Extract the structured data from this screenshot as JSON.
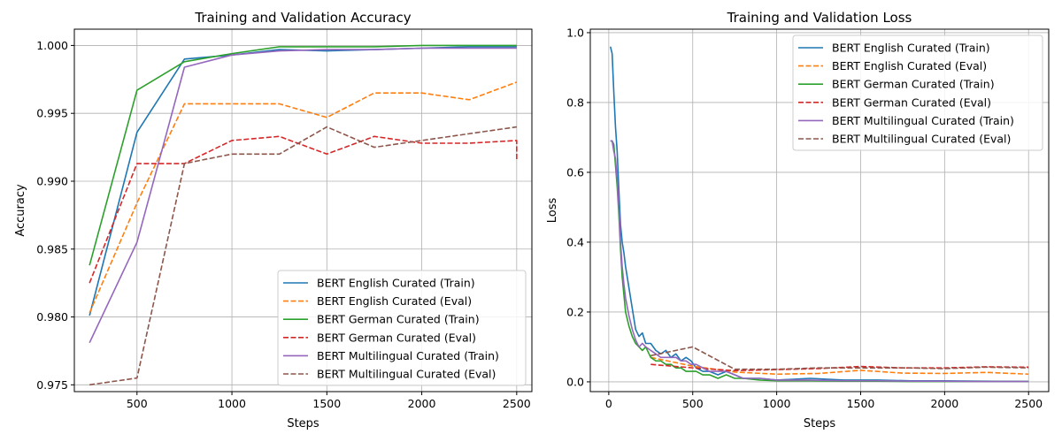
{
  "chart_data": [
    {
      "type": "line",
      "title": "Training and Validation Accuracy",
      "xlabel": "Steps",
      "ylabel": "Accuracy",
      "xlim": [
        170,
        2580
      ],
      "ylim": [
        0.9745,
        1.0012
      ],
      "xticks": [
        500,
        1000,
        1500,
        2000,
        2500
      ],
      "yticks": [
        0.975,
        0.98,
        0.985,
        0.99,
        0.995,
        1.0
      ],
      "ytick_labels": [
        "0.975",
        "0.980",
        "0.985",
        "0.990",
        "0.995",
        "1.000"
      ],
      "grid": true,
      "legend_position": "lower-right",
      "series": [
        {
          "name": "BERT English Curated (Train)",
          "color": "#1f77b4",
          "dash": "solid",
          "x": [
            250,
            500,
            750,
            1000,
            1250,
            1500,
            1750,
            2000,
            2250,
            2500
          ],
          "y": [
            0.9801,
            0.9936,
            0.999,
            0.9993,
            0.9997,
            0.9996,
            0.9997,
            0.9998,
            0.9999,
            0.9999
          ]
        },
        {
          "name": "BERT English Curated (Eval)",
          "color": "#ff7f0e",
          "dash": "dashed",
          "x": [
            250,
            500,
            750,
            1000,
            1250,
            1500,
            1750,
            2000,
            2250,
            2500
          ],
          "y": [
            0.9803,
            0.9884,
            0.9957,
            0.9957,
            0.9957,
            0.9947,
            0.9965,
            0.9965,
            0.996,
            0.9973
          ]
        },
        {
          "name": "BERT German Curated (Train)",
          "color": "#2ca02c",
          "dash": "solid",
          "x": [
            250,
            500,
            750,
            1000,
            1250,
            1500,
            1750,
            2000,
            2250,
            2500
          ],
          "y": [
            0.9838,
            0.9967,
            0.9988,
            0.9994,
            0.9999,
            0.9999,
            0.9999,
            1.0,
            1.0,
            1.0
          ]
        },
        {
          "name": "BERT German Curated (Eval)",
          "color": "#d62728",
          "dash": "dashed",
          "x": [
            250,
            500,
            750,
            1000,
            1250,
            1500,
            1750,
            2000,
            2250,
            2500,
            2500
          ],
          "y": [
            0.9825,
            0.9913,
            0.9913,
            0.993,
            0.9933,
            0.992,
            0.9933,
            0.9928,
            0.9928,
            0.993,
            0.9915
          ]
        },
        {
          "name": "BERT Multilingual Curated (Train)",
          "color": "#9467bd",
          "dash": "solid",
          "x": [
            250,
            500,
            750,
            1000,
            1250,
            1500,
            1750,
            2000,
            2250,
            2500
          ],
          "y": [
            0.9781,
            0.9855,
            0.9984,
            0.9993,
            0.9996,
            0.9997,
            0.9997,
            0.9998,
            0.9998,
            0.9998
          ]
        },
        {
          "name": "BERT Multilingual Curated (Eval)",
          "color": "#8c564b",
          "dash": "dashed",
          "x": [
            250,
            500,
            750,
            1000,
            1250,
            1500,
            1750,
            2000,
            2250,
            2500
          ],
          "y": [
            0.975,
            0.9755,
            0.9913,
            0.992,
            0.992,
            0.994,
            0.9925,
            0.993,
            0.9935,
            0.994
          ]
        }
      ]
    },
    {
      "type": "line",
      "title": "Training and Validation Loss",
      "xlabel": "Steps",
      "ylabel": "Loss",
      "xlim": [
        -110,
        2620
      ],
      "ylim": [
        -0.028,
        1.01
      ],
      "xticks": [
        0,
        500,
        1000,
        1500,
        2000,
        2500
      ],
      "yticks": [
        0.0,
        0.2,
        0.4,
        0.6,
        0.8,
        1.0
      ],
      "ytick_labels": [
        "0.0",
        "0.2",
        "0.4",
        "0.6",
        "0.8",
        "1.0"
      ],
      "grid": true,
      "legend_position": "upper-right",
      "series": [
        {
          "name": "BERT English Curated (Train)",
          "color": "#1f77b4",
          "dash": "solid",
          "x": [
            10,
            20,
            30,
            40,
            50,
            60,
            70,
            80,
            90,
            100,
            120,
            140,
            160,
            180,
            200,
            220,
            250,
            280,
            310,
            340,
            370,
            400,
            430,
            460,
            490,
            520,
            560,
            600,
            650,
            700,
            750,
            800,
            900,
            1000,
            1200,
            1400,
            1600,
            1800,
            2000,
            2200,
            2500
          ],
          "y": [
            0.96,
            0.94,
            0.83,
            0.73,
            0.66,
            0.55,
            0.45,
            0.4,
            0.37,
            0.33,
            0.27,
            0.21,
            0.15,
            0.13,
            0.14,
            0.11,
            0.11,
            0.09,
            0.08,
            0.09,
            0.07,
            0.08,
            0.06,
            0.07,
            0.06,
            0.04,
            0.03,
            0.03,
            0.02,
            0.03,
            0.02,
            0.01,
            0.01,
            0.005,
            0.01,
            0.005,
            0.005,
            0.003,
            0.003,
            0.002,
            0.001
          ]
        },
        {
          "name": "BERT English Curated (Eval)",
          "color": "#ff7f0e",
          "dash": "dashed",
          "x": [
            250,
            500,
            750,
            1000,
            1250,
            1500,
            1750,
            2000,
            2250,
            2500
          ],
          "y": [
            0.07,
            0.045,
            0.028,
            0.022,
            0.024,
            0.033,
            0.025,
            0.024,
            0.027,
            0.022
          ]
        },
        {
          "name": "BERT German Curated (Train)",
          "color": "#2ca02c",
          "dash": "solid",
          "x": [
            10,
            20,
            30,
            40,
            50,
            60,
            70,
            80,
            90,
            100,
            120,
            140,
            160,
            180,
            200,
            220,
            250,
            280,
            310,
            340,
            370,
            400,
            430,
            460,
            490,
            520,
            560,
            600,
            650,
            700,
            750,
            800,
            900,
            1000,
            1200,
            1400,
            1600,
            1800,
            2000,
            2200,
            2500
          ],
          "y": [
            0.69,
            0.69,
            0.68,
            0.62,
            0.56,
            0.48,
            0.38,
            0.3,
            0.25,
            0.2,
            0.16,
            0.13,
            0.11,
            0.1,
            0.09,
            0.1,
            0.07,
            0.06,
            0.06,
            0.05,
            0.05,
            0.04,
            0.04,
            0.03,
            0.03,
            0.03,
            0.02,
            0.02,
            0.01,
            0.02,
            0.01,
            0.01,
            0.005,
            0.003,
            0.003,
            0.002,
            0.002,
            0.001,
            0.001,
            0.001,
            0.001
          ]
        },
        {
          "name": "BERT German Curated (Eval)",
          "color": "#d62728",
          "dash": "dashed",
          "x": [
            250,
            500,
            750,
            1000,
            1250,
            1500,
            1750,
            2000,
            2250,
            2500
          ],
          "y": [
            0.05,
            0.04,
            0.032,
            0.035,
            0.038,
            0.044,
            0.04,
            0.04,
            0.043,
            0.042
          ]
        },
        {
          "name": "BERT Multilingual Curated (Train)",
          "color": "#9467bd",
          "dash": "solid",
          "x": [
            10,
            20,
            30,
            40,
            50,
            60,
            70,
            80,
            90,
            100,
            120,
            140,
            160,
            180,
            200,
            220,
            250,
            280,
            310,
            340,
            370,
            400,
            430,
            460,
            490,
            520,
            560,
            600,
            650,
            700,
            750,
            800,
            900,
            1000,
            1200,
            1400,
            1600,
            1800,
            2000,
            2200,
            2500
          ],
          "y": [
            0.69,
            0.69,
            0.66,
            0.64,
            0.58,
            0.5,
            0.4,
            0.33,
            0.28,
            0.24,
            0.19,
            0.15,
            0.12,
            0.1,
            0.11,
            0.1,
            0.09,
            0.08,
            0.07,
            0.07,
            0.07,
            0.07,
            0.06,
            0.06,
            0.05,
            0.05,
            0.04,
            0.03,
            0.03,
            0.03,
            0.02,
            0.01,
            0.01,
            0.005,
            0.005,
            0.003,
            0.003,
            0.002,
            0.002,
            0.001,
            0.001
          ]
        },
        {
          "name": "BERT Multilingual Curated (Eval)",
          "color": "#8c564b",
          "dash": "dashed",
          "x": [
            250,
            500,
            750,
            1000,
            1250,
            1500,
            1750,
            2000,
            2250,
            2500
          ],
          "y": [
            0.075,
            0.1,
            0.036,
            0.036,
            0.04,
            0.04,
            0.04,
            0.038,
            0.042,
            0.04
          ]
        }
      ]
    }
  ]
}
